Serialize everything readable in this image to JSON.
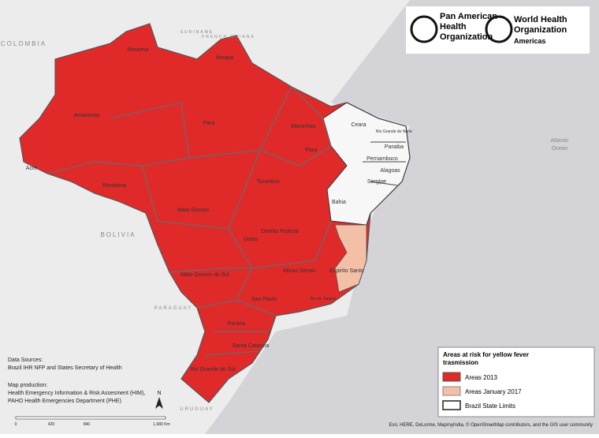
{
  "logos": {
    "paho": [
      "Pan American",
      "Health",
      "Organization"
    ],
    "who": [
      "World Health",
      "Organization",
      "Americas"
    ]
  },
  "countries": [
    "COLOMBIA",
    "BOLIVIA",
    "PARAGUAY",
    "URUGUAY",
    "FRENCH GUIANA",
    "SURINAME"
  ],
  "ocean": [
    "Atlantic",
    "Ocean"
  ],
  "states": [
    "Roraima",
    "Amapa",
    "Amazonas",
    "Para",
    "Maranhao",
    "Ceara",
    "Piaui",
    "Rio Grande do Norte",
    "Paraiba",
    "Pernambuco",
    "Alagoas",
    "Sergipe",
    "Acre",
    "Rondonia",
    "Tocantins",
    "Bahia",
    "Mato Grosso",
    "Goias",
    "Distrito Federal",
    "Minas Gerais",
    "Espirito Santo",
    "Mato Grosso do Sul",
    "Sao Paulo",
    "Rio de Janeiro",
    "Parana",
    "Santa Catarina",
    "Rio Grande do Sul"
  ],
  "sources": {
    "title": "Data Sources:",
    "text": "Brazil IHR NFP and States Secretary of Health"
  },
  "production": {
    "title": "Map production:",
    "lines": [
      "Health Emergency Information & Risk Assesment (HIM),",
      "PAHO Health Emergencies Department (PHE)"
    ]
  },
  "north": "N",
  "scale": [
    "0",
    "420",
    "840",
    "1,680 Km"
  ],
  "legend": {
    "title": [
      "Areas at risk for yellow fever",
      "trasmission"
    ],
    "items": [
      "Areas 2013",
      "Areas January 2017",
      "Brazil State Limits"
    ]
  },
  "attribution": "Esri, HERE, DeLorme, MapmyIndia, © OpenStreetMap contributors, and the GIS user community"
}
